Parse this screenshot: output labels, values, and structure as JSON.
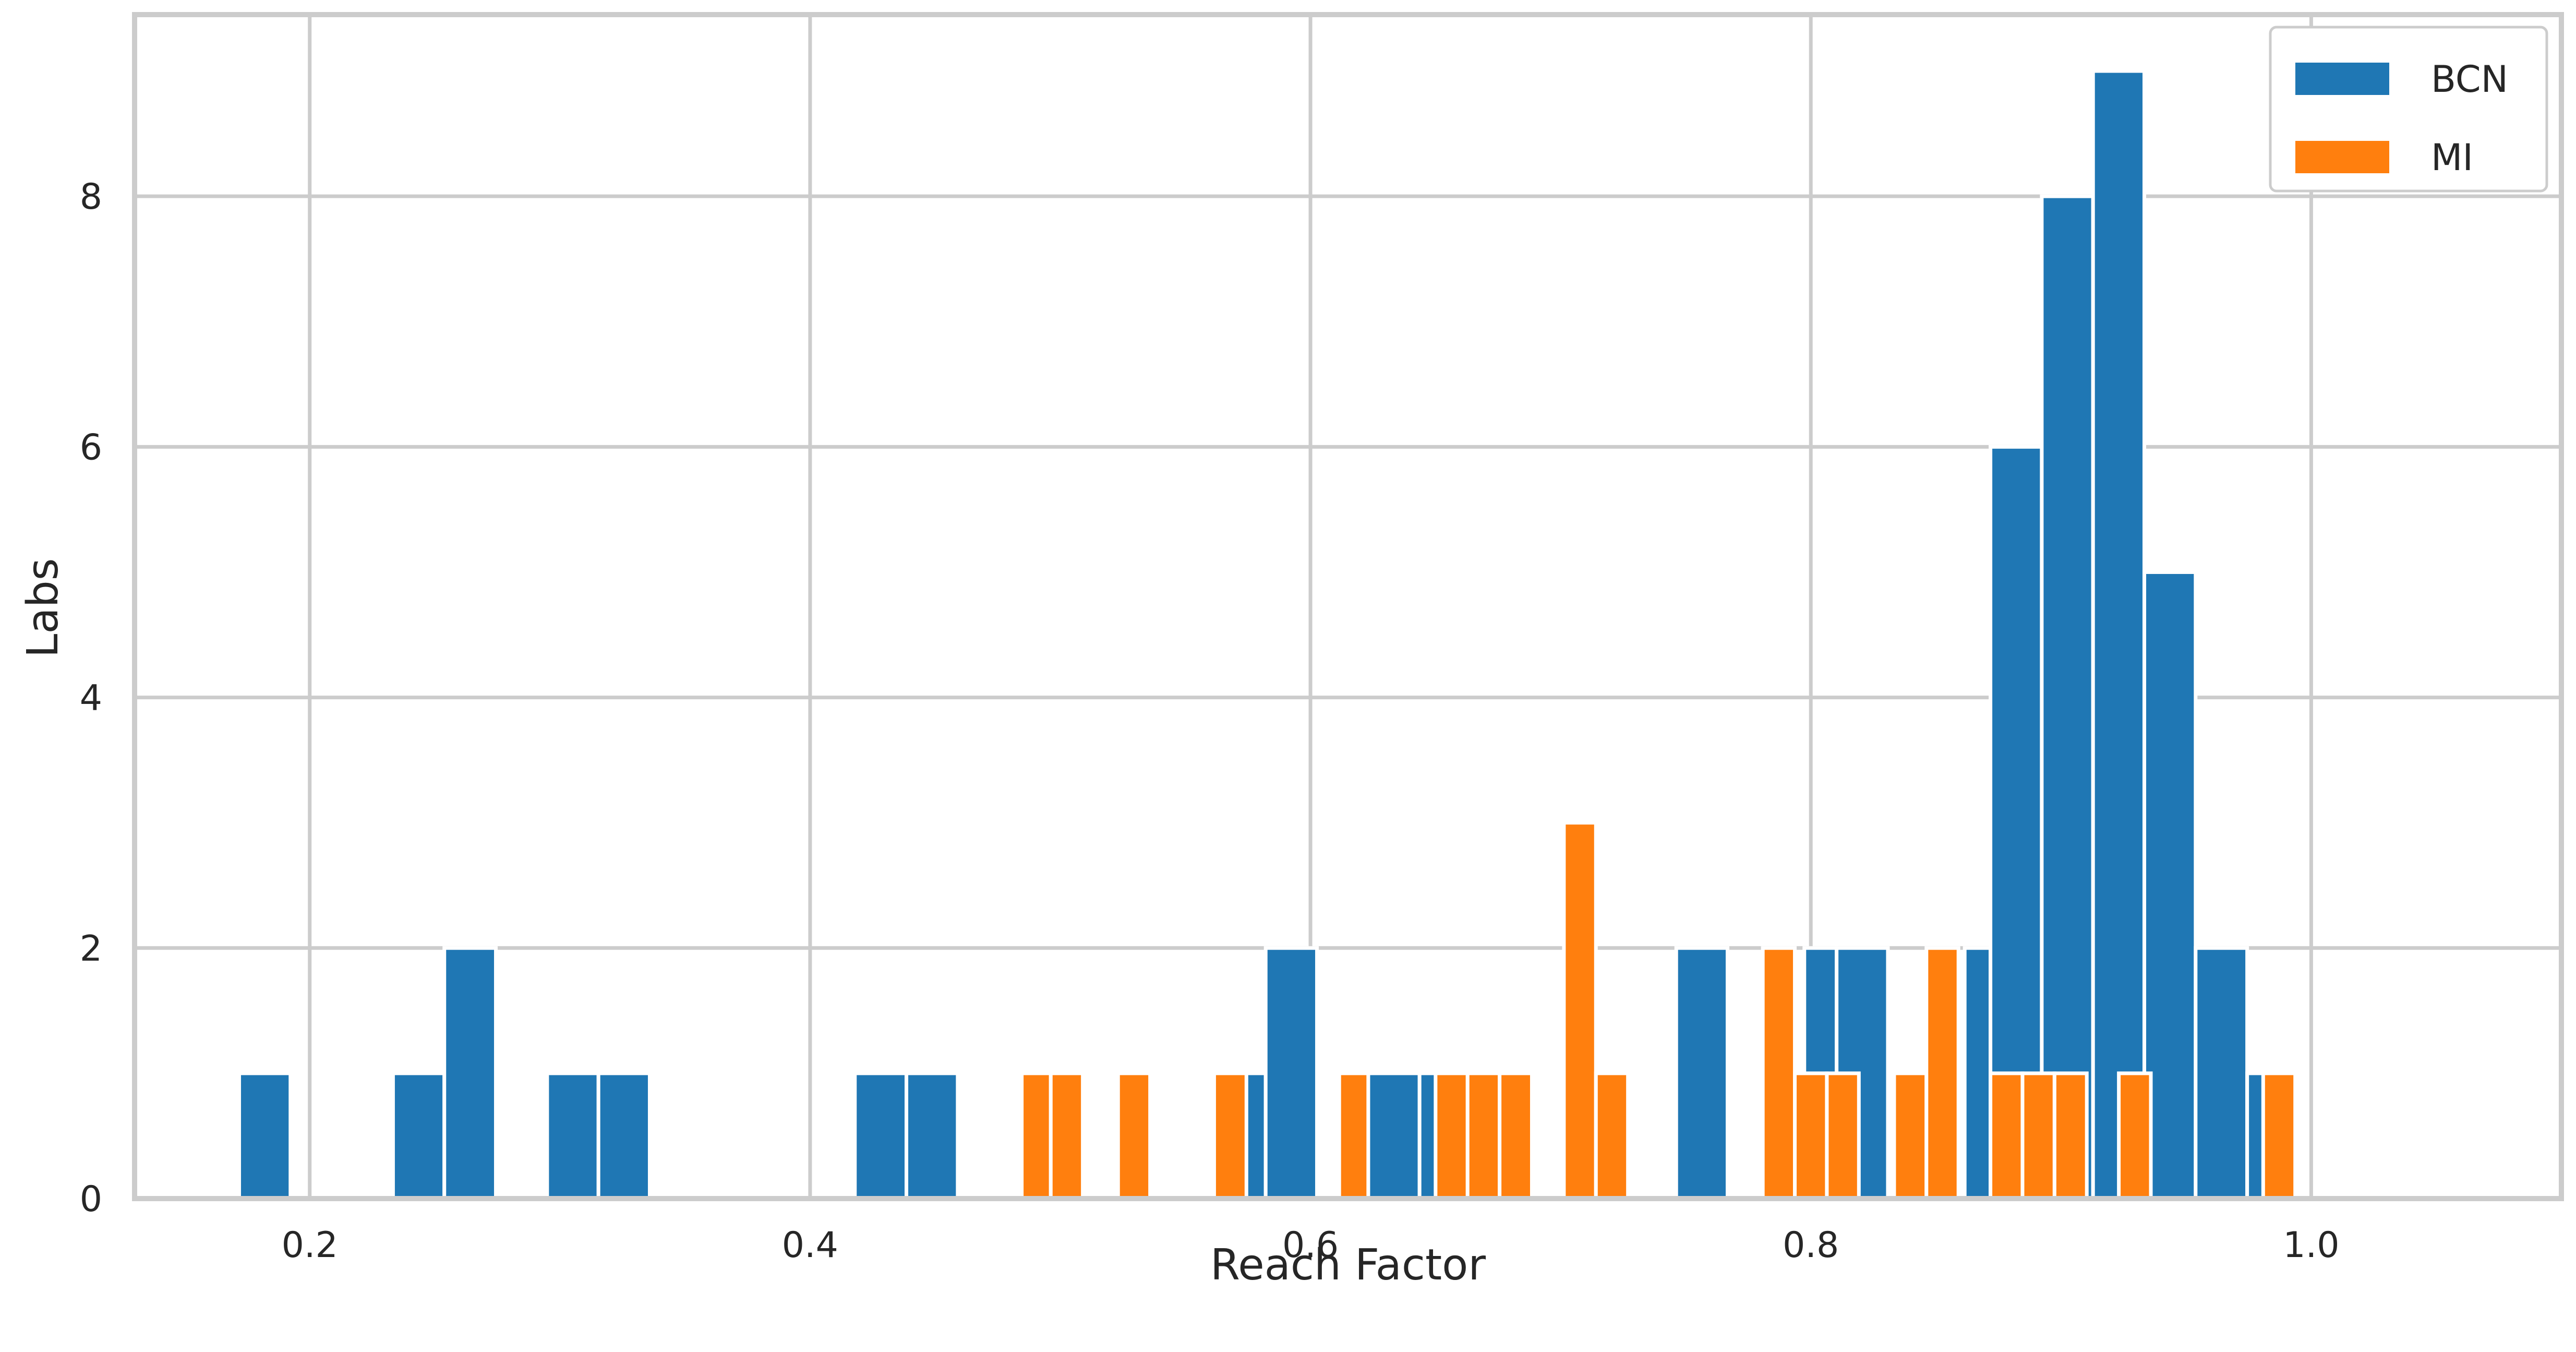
{
  "chart_data": {
    "type": "bar",
    "xlabel": "Reach Factor",
    "ylabel": "Labs",
    "xlim": [
      0.13,
      1.1
    ],
    "ylim": [
      0,
      9.45
    ],
    "x_ticks": [
      "0.2",
      "0.4",
      "0.6",
      "0.8",
      "1.0"
    ],
    "y_ticks": [
      "0",
      "2",
      "4",
      "6",
      "8"
    ],
    "grid": true,
    "legend_position": "top-right",
    "series": [
      {
        "name": "BCN",
        "color": "#1f77b4",
        "bars": [
          {
            "x0": 0.1718,
            "x1": 0.1923,
            "count": 1
          },
          {
            "x0": 0.2333,
            "x1": 0.2538,
            "count": 1
          },
          {
            "x0": 0.2538,
            "x1": 0.2744,
            "count": 2
          },
          {
            "x0": 0.2949,
            "x1": 0.3154,
            "count": 1
          },
          {
            "x0": 0.3154,
            "x1": 0.3359,
            "count": 1
          },
          {
            "x0": 0.4179,
            "x1": 0.4385,
            "count": 1
          },
          {
            "x0": 0.4385,
            "x1": 0.459,
            "count": 1
          },
          {
            "x0": 0.5718,
            "x1": 0.5821,
            "count": 1
          },
          {
            "x0": 0.5821,
            "x1": 0.6026,
            "count": 2
          },
          {
            "x0": 0.6231,
            "x1": 0.6436,
            "count": 1
          },
          {
            "x0": 0.6436,
            "x1": 0.6513,
            "count": 1
          },
          {
            "x0": 0.7462,
            "x1": 0.7667,
            "count": 2
          },
          {
            "x0": 0.7974,
            "x1": 0.8103,
            "count": 2
          },
          {
            "x0": 0.8103,
            "x1": 0.8308,
            "count": 2
          },
          {
            "x0": 0.8615,
            "x1": 0.8718,
            "count": 2
          },
          {
            "x0": 0.8718,
            "x1": 0.8923,
            "count": 6
          },
          {
            "x0": 0.8923,
            "x1": 0.9128,
            "count": 8
          },
          {
            "x0": 0.9128,
            "x1": 0.9333,
            "count": 9
          },
          {
            "x0": 0.9333,
            "x1": 0.9538,
            "count": 5
          },
          {
            "x0": 0.9538,
            "x1": 0.9744,
            "count": 2
          },
          {
            "x0": 0.9744,
            "x1": 0.9949,
            "count": 1
          }
        ]
      },
      {
        "name": "MI",
        "color": "#ff7f0e",
        "bars": [
          {
            "x0": 0.4846,
            "x1": 0.4962,
            "count": 1
          },
          {
            "x0": 0.4962,
            "x1": 0.509,
            "count": 1
          },
          {
            "x0": 0.5231,
            "x1": 0.5359,
            "count": 1
          },
          {
            "x0": 0.5615,
            "x1": 0.5744,
            "count": 1
          },
          {
            "x0": 0.6115,
            "x1": 0.6231,
            "count": 1
          },
          {
            "x0": 0.65,
            "x1": 0.6628,
            "count": 1
          },
          {
            "x0": 0.6628,
            "x1": 0.6756,
            "count": 1
          },
          {
            "x0": 0.6756,
            "x1": 0.6885,
            "count": 1
          },
          {
            "x0": 0.7013,
            "x1": 0.7141,
            "count": 3
          },
          {
            "x0": 0.7141,
            "x1": 0.7269,
            "count": 1
          },
          {
            "x0": 0.7808,
            "x1": 0.7936,
            "count": 2
          },
          {
            "x0": 0.7936,
            "x1": 0.8064,
            "count": 1
          },
          {
            "x0": 0.8064,
            "x1": 0.8192,
            "count": 1
          },
          {
            "x0": 0.8333,
            "x1": 0.8462,
            "count": 1
          },
          {
            "x0": 0.8462,
            "x1": 0.859,
            "count": 2
          },
          {
            "x0": 0.8718,
            "x1": 0.8846,
            "count": 1
          },
          {
            "x0": 0.8846,
            "x1": 0.8974,
            "count": 1
          },
          {
            "x0": 0.8974,
            "x1": 0.9103,
            "count": 1
          },
          {
            "x0": 0.9231,
            "x1": 0.9359,
            "count": 1
          },
          {
            "x0": 0.9808,
            "x1": 0.9936,
            "count": 1
          }
        ]
      }
    ]
  }
}
